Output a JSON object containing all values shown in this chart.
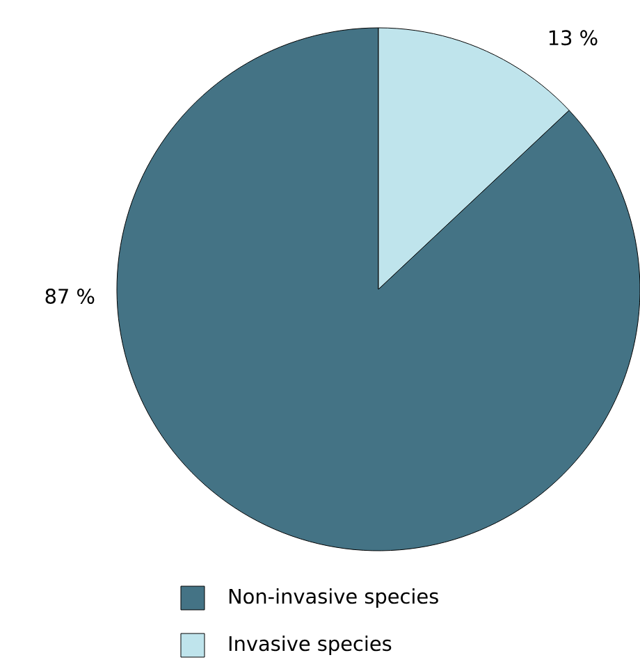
{
  "chart_data": {
    "type": "pie",
    "categories": [
      "Non-invasive species",
      "Invasive species"
    ],
    "values": [
      87,
      13
    ],
    "colors": [
      "#447385",
      "#bfe4ec"
    ],
    "value_labels": [
      "87 %",
      "13 %"
    ],
    "legend": "bottom"
  }
}
